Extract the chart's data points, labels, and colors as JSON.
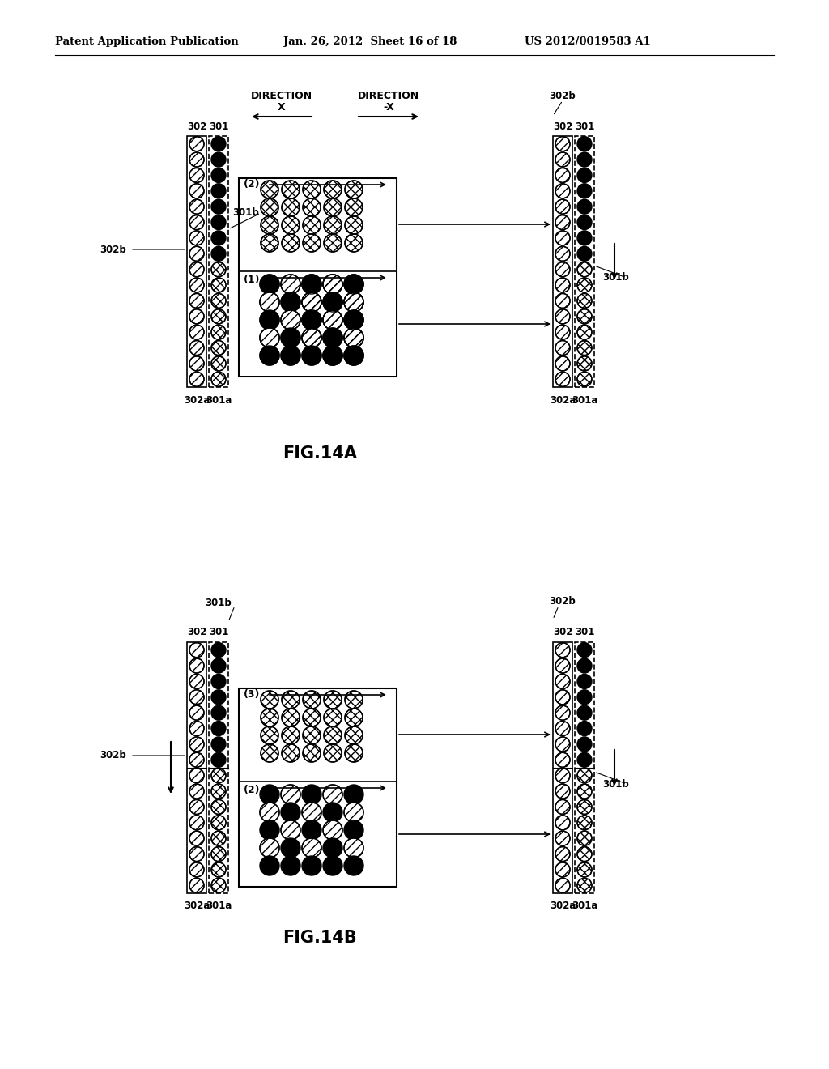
{
  "header_left": "Patent Application Publication",
  "header_mid": "Jan. 26, 2012  Sheet 16 of 18",
  "header_right": "US 2012/0019583 A1",
  "fig14a_label": "FIG.14A",
  "fig14b_label": "FIG.14B",
  "bg_color": "#ffffff"
}
